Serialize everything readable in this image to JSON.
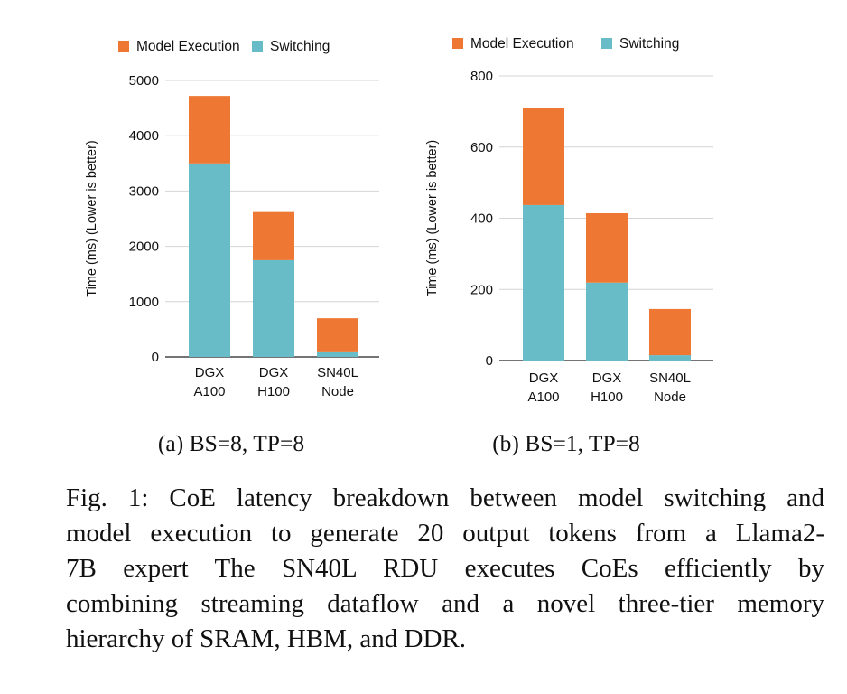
{
  "colors": {
    "model_execution": "#ED7733",
    "switching": "#68BCC8",
    "grid": "#d4d4d4",
    "axis": "#222222",
    "text": "#111111"
  },
  "chart_data": [
    {
      "type": "bar",
      "stacked": true,
      "subcaption": "(a) BS=8, TP=8",
      "ylabel": "Time (ms) (Lower is better)",
      "xlabel": "",
      "categories": [
        [
          "DGX",
          "A100"
        ],
        [
          "DGX",
          "H100"
        ],
        [
          "SN40L",
          "Node"
        ]
      ],
      "category_labels": [
        "DGX A100",
        "DGX H100",
        "SN40L Node"
      ],
      "series": [
        {
          "name": "Switching",
          "values": [
            3500,
            1750,
            100
          ]
        },
        {
          "name": "Model Execution",
          "values": [
            1220,
            870,
            600
          ]
        }
      ],
      "legend": [
        "Model Execution",
        "Switching"
      ],
      "legend_position": "top",
      "ylim": [
        0,
        5000
      ],
      "yticks": [
        0,
        1000,
        2000,
        3000,
        4000,
        5000
      ],
      "grid": true
    },
    {
      "type": "bar",
      "stacked": true,
      "subcaption": "(b) BS=1, TP=8",
      "ylabel": "Time (ms) (Lower is better)",
      "xlabel": "",
      "categories": [
        [
          "DGX",
          "A100"
        ],
        [
          "DGX",
          "H100"
        ],
        [
          "SN40L",
          "Node"
        ]
      ],
      "category_labels": [
        "DGX A100",
        "DGX H100",
        "SN40L Node"
      ],
      "series": [
        {
          "name": "Switching",
          "values": [
            437,
            219,
            15
          ]
        },
        {
          "name": "Model Execution",
          "values": [
            273,
            195,
            130
          ]
        }
      ],
      "legend": [
        "Model Execution",
        "Switching"
      ],
      "legend_position": "top",
      "ylim": [
        0,
        800
      ],
      "yticks": [
        0,
        200,
        400,
        600,
        800
      ],
      "grid": true
    }
  ],
  "caption": {
    "lines": [
      "Fig. 1: CoE latency breakdown between model switching and",
      "model execution to generate 20 output tokens from a Llama2-",
      "7B expert The SN40L RDU executes CoEs efficiently by",
      "combining streaming dataflow and a novel three-tier memory",
      "hierarchy of SRAM, HBM, and DDR."
    ]
  }
}
